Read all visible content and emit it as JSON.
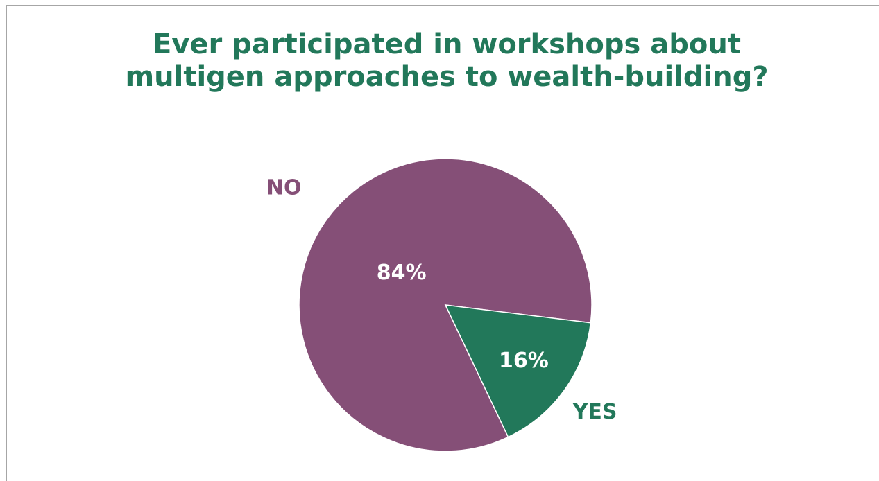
{
  "chart_data": {
    "type": "pie",
    "title": [
      "Ever participated in workshops about",
      "multigen approaches to wealth-building?"
    ],
    "categories": [
      "NO",
      "YES"
    ],
    "values": [
      84,
      16
    ],
    "value_labels": [
      "84%",
      "16%"
    ],
    "colors": [
      "#854f77",
      "#22785a"
    ]
  }
}
